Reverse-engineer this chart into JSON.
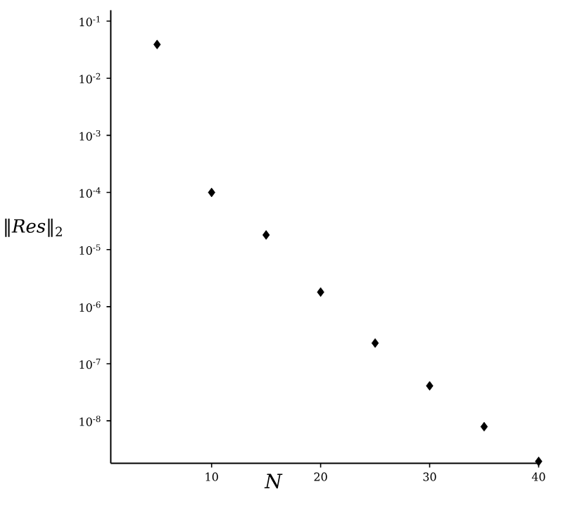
{
  "chart_data": {
    "type": "scatter",
    "xlabel": "N",
    "ylabel": "‖*Res*‖$_{2}$",
    "x": [
      5,
      10,
      15,
      20,
      25,
      30,
      35,
      40
    ],
    "series": [
      {
        "color": "#000000",
        "values": [
          0.039,
          0.0001,
          1.8e-05,
          1.8e-06,
          2.3e-07,
          4.1e-08,
          7.9e-09,
          1.95e-09
        ]
      }
    ],
    "xlim": [
      0.75,
      40
    ],
    "xticks": [
      10,
      20,
      30,
      40
    ],
    "ylim": [
      1.8e-09,
      0.155
    ],
    "yticks": [
      {
        "value": 0.1,
        "label": "10$^{-1}$"
      },
      {
        "value": 0.01,
        "label": "10$^{-2}$"
      },
      {
        "value": 0.001,
        "label": "10$^{-3}$"
      },
      {
        "value": 0.0001,
        "label": "10$^{-4}$"
      },
      {
        "value": 1e-05,
        "label": "10$^{-5}$"
      },
      {
        "value": 1e-06,
        "label": "10$^{-6}$"
      },
      {
        "value": 1e-07,
        "label": "10$^{-7}$"
      },
      {
        "value": 1e-08,
        "label": "10$^{-8}$"
      }
    ],
    "log": "y",
    "grid": false,
    "marker": "diamond"
  }
}
